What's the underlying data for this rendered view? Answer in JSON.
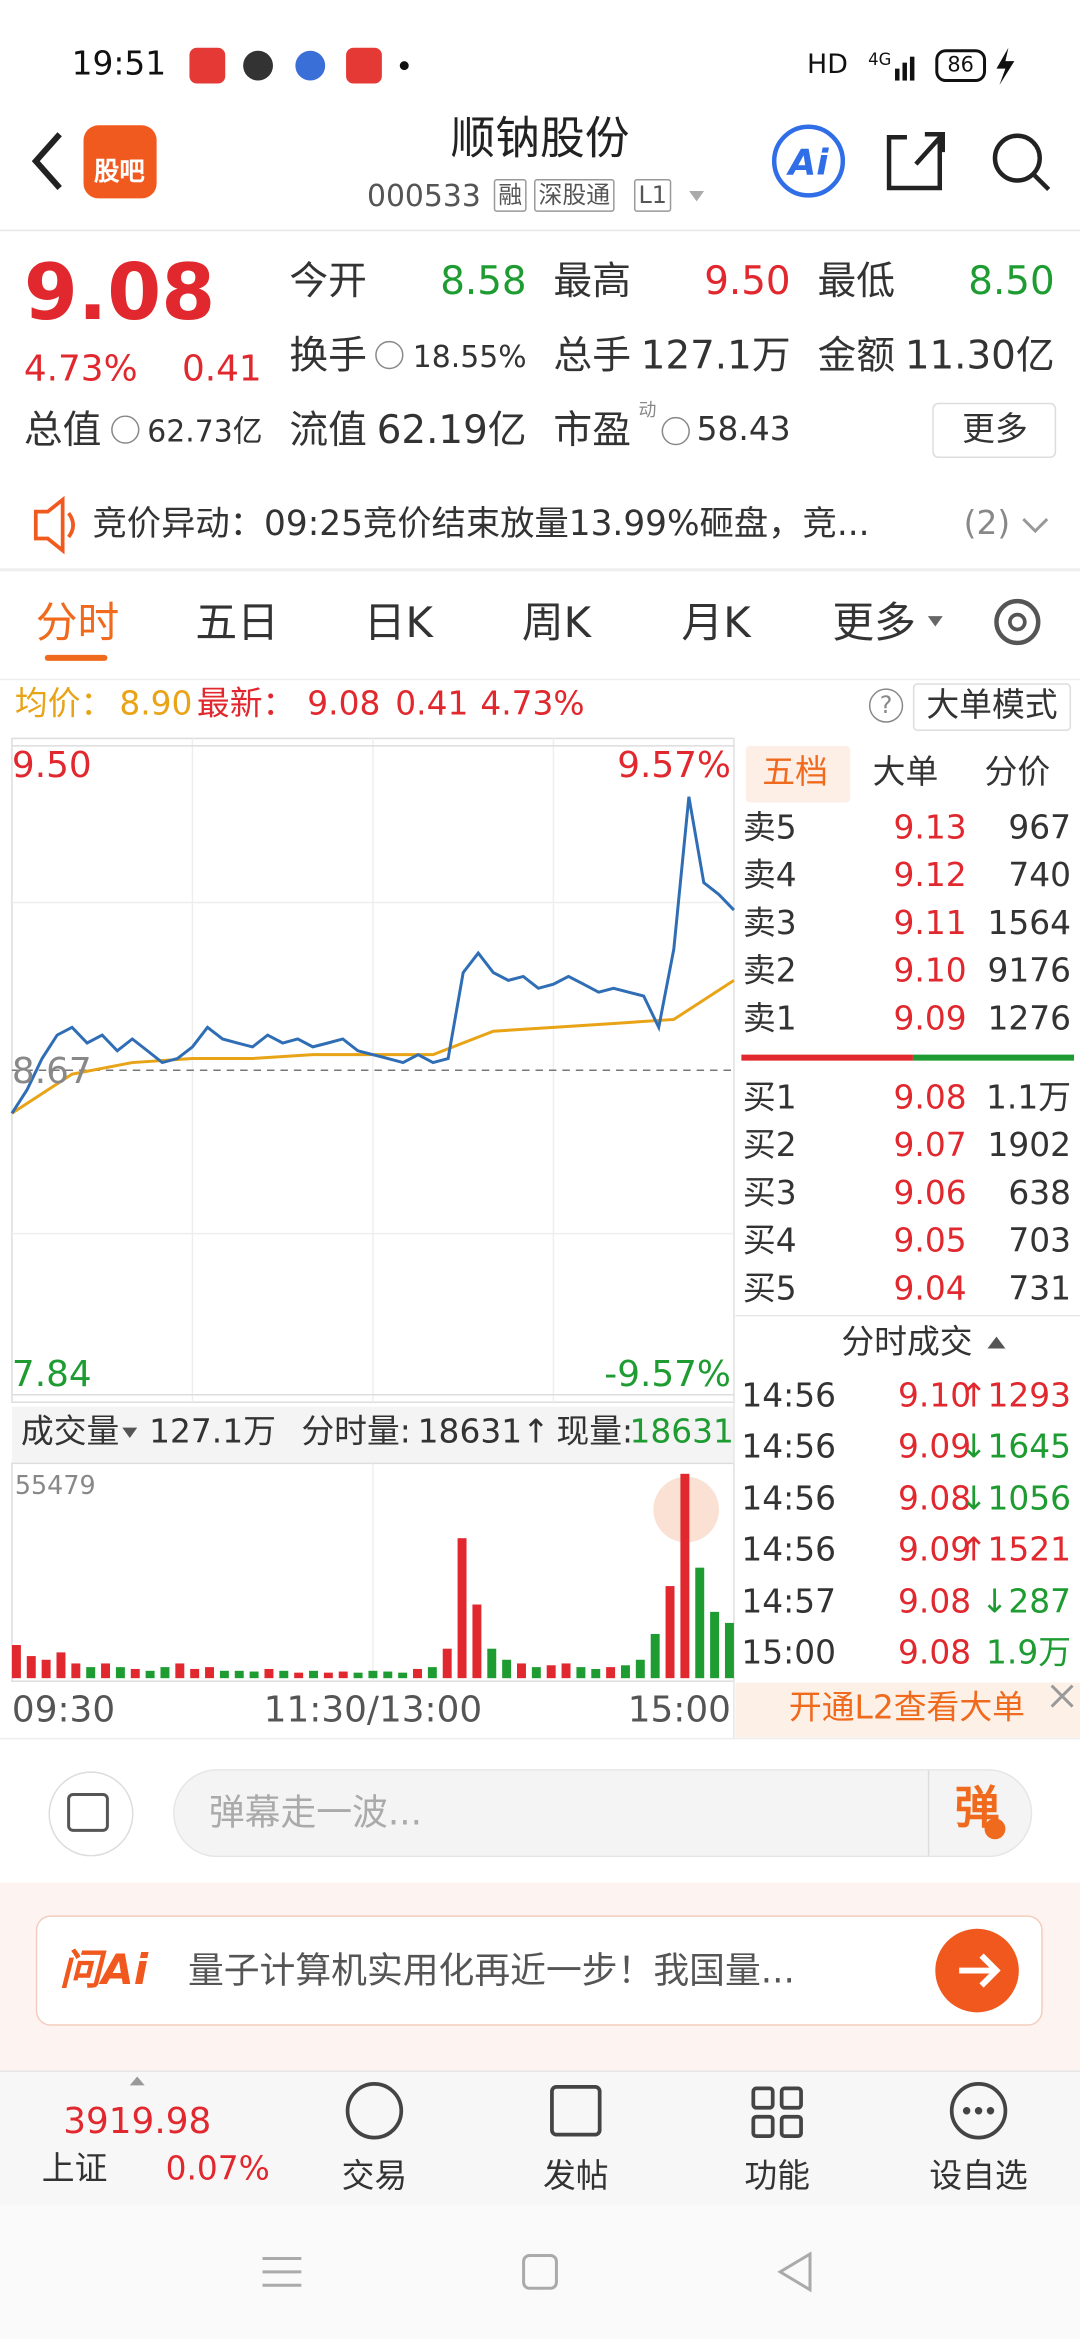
{
  "status_bar": {
    "time": "19:51",
    "network": "HD",
    "signal": "4G",
    "battery": "86"
  },
  "header": {
    "logo": "股吧",
    "title": "顺钠股份",
    "code": "000533",
    "tags": [
      "融",
      "深股通",
      "L1"
    ],
    "ai": "Ai"
  },
  "quote": {
    "price": "9.08",
    "change_pct": "4.73%",
    "change": "0.41",
    "fields": [
      {
        "label": "今开",
        "value": "8.58"
      },
      {
        "label": "最高",
        "value": "9.50"
      },
      {
        "label": "最低",
        "value": "8.50"
      },
      {
        "label": "换手",
        "value": "18.55%"
      },
      {
        "label": "总手",
        "value": "127.1万"
      },
      {
        "label": "金额",
        "value": "11.30亿"
      },
      {
        "label": "总值",
        "value": "62.73亿"
      },
      {
        "label": "流值",
        "value": "62.19亿"
      },
      {
        "label": "市盈",
        "sup": "动",
        "value": "58.43"
      }
    ],
    "more": "更多"
  },
  "alert": {
    "text": "竞价异动：09:25竞价结束放量13.99%砸盘，竞...",
    "count": "(2)"
  },
  "tabs": [
    "分时",
    "五日",
    "日K",
    "周K",
    "月K",
    "更多"
  ],
  "info": {
    "avg_label": "均价：",
    "avg": "8.90",
    "latest_label": "最新：",
    "latest": "9.08",
    "change": "0.41",
    "change_pct": "4.73%",
    "help": "?",
    "mode": "大单模式"
  },
  "chart_data": {
    "type": "line",
    "ylim": [
      7.84,
      9.5
    ],
    "yticks": [
      {
        "value": 9.5,
        "label": "9.50"
      },
      {
        "value": 8.67,
        "label": "8.67"
      },
      {
        "value": 7.84,
        "label": "7.84"
      }
    ],
    "pct_labels": [
      "9.57%",
      "-9.57%"
    ],
    "x_labels": [
      "09:30",
      "11:30/13:00",
      "15:00"
    ],
    "series": [
      {
        "color": "#2f6db5",
        "values": [
          8.56,
          8.62,
          8.7,
          8.76,
          8.78,
          8.74,
          8.76,
          8.72,
          8.75,
          8.72,
          8.69,
          8.7,
          8.73,
          8.78,
          8.75,
          8.74,
          8.73,
          8.76,
          8.74,
          8.75,
          8.73,
          8.74,
          8.75,
          8.72,
          8.71,
          8.7,
          8.69,
          8.71,
          8.69,
          8.7,
          8.92,
          8.97,
          8.92,
          8.9,
          8.91,
          8.88,
          8.89,
          8.91,
          8.89,
          8.87,
          8.88,
          8.87,
          8.86,
          8.78,
          8.98,
          9.37,
          9.15,
          9.12,
          9.08
        ]
      },
      {
        "color": "#e8a317",
        "values": [
          8.56,
          8.66,
          8.69,
          8.7,
          8.7,
          8.71,
          8.71,
          8.71,
          8.77,
          8.78,
          8.79,
          8.8,
          8.9
        ]
      }
    ],
    "volume": {
      "label": "成交量",
      "total": "127.1万",
      "period_label": "分时量:",
      "period": "18631↑",
      "current_label": "现量:",
      "current": "18631",
      "max": 55479,
      "up_color": "#e0282e",
      "down_color": "#1e9c32",
      "values": [
        9000,
        6000,
        5000,
        7000,
        4000,
        3000,
        4000,
        3000,
        2500,
        2000,
        3000,
        4000,
        2500,
        3000,
        2000,
        2000,
        1800,
        2500,
        2000,
        1500,
        2000,
        1500,
        1800,
        1500,
        2000,
        1800,
        1500,
        2500,
        3000,
        8000,
        38000,
        20000,
        8000,
        5000,
        4000,
        3000,
        3500,
        4000,
        3000,
        2500,
        3000,
        3500,
        5000,
        12000,
        25000,
        55479,
        30000,
        18000,
        15000
      ]
    }
  },
  "order_book": {
    "tabs": [
      "五档",
      "大单",
      "分价"
    ],
    "asks": [
      {
        "label": "卖5",
        "price": "9.13",
        "volume": "967"
      },
      {
        "label": "卖4",
        "price": "9.12",
        "volume": "740"
      },
      {
        "label": "卖3",
        "price": "9.11",
        "volume": "1564"
      },
      {
        "label": "卖2",
        "price": "9.10",
        "volume": "9176"
      },
      {
        "label": "卖1",
        "price": "9.09",
        "volume": "1276"
      }
    ],
    "bids": [
      {
        "label": "买1",
        "price": "9.08",
        "volume": "1.1万"
      },
      {
        "label": "买2",
        "price": "9.07",
        "volume": "1902"
      },
      {
        "label": "买3",
        "price": "9.06",
        "volume": "638"
      },
      {
        "label": "买4",
        "price": "9.05",
        "volume": "703"
      },
      {
        "label": "买5",
        "price": "9.04",
        "volume": "731"
      }
    ]
  },
  "trades": {
    "title": "分时成交",
    "rows": [
      {
        "time": "14:56",
        "price": "9.10",
        "dir": "↑",
        "volume": "1293"
      },
      {
        "time": "14:56",
        "price": "9.09",
        "dir": "↓",
        "volume": "1645"
      },
      {
        "time": "14:56",
        "price": "9.08",
        "dir": "↓",
        "volume": "1056"
      },
      {
        "time": "14:56",
        "price": "9.09",
        "dir": "↑",
        "volume": "1521"
      },
      {
        "time": "14:57",
        "price": "9.08",
        "dir": "↓",
        "volume": "287"
      },
      {
        "time": "15:00",
        "price": "9.08",
        "volume": "1.9万"
      }
    ],
    "l2": "开通L2查看大单"
  },
  "chat": {
    "placeholder": "弹幕走一波...",
    "button": "弹"
  },
  "ai_banner": {
    "brand": "问Ai",
    "text": "量子计算机实用化再近一步！我国量..."
  },
  "bottom_nav": {
    "index_value": "3919.98",
    "index_name": "上证",
    "index_change": "0.07%",
    "items": [
      "交易",
      "发帖",
      "功能",
      "设自选"
    ]
  }
}
